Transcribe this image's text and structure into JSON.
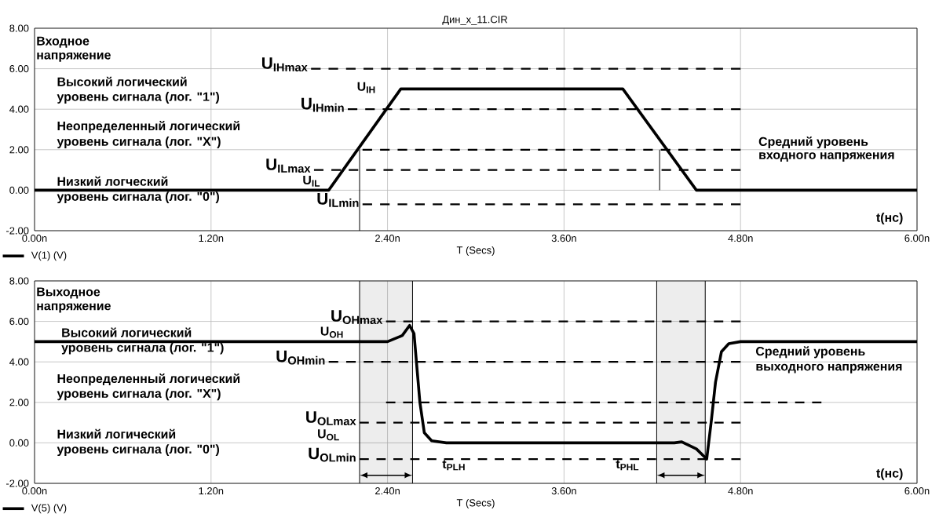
{
  "chart_data": [
    {
      "type": "line",
      "title": "Дин_х_11.CIR",
      "xlabel": "T (Secs)",
      "grid": true,
      "xlim": [
        0,
        6
      ],
      "xticks": [
        {
          "value": 0,
          "label": "0.00n"
        },
        {
          "value": 1.2,
          "label": "1.20n"
        },
        {
          "value": 2.4,
          "label": "2.40n"
        },
        {
          "value": 3.6,
          "label": "3.60n"
        },
        {
          "value": 4.8,
          "label": "4.80n"
        },
        {
          "value": 6,
          "label": "6.00n"
        }
      ],
      "ylim": [
        -2,
        8
      ],
      "yticks": [
        {
          "value": -2,
          "label": "-2.00"
        },
        {
          "value": 0,
          "label": "0.00"
        },
        {
          "value": 2,
          "label": "2.00"
        },
        {
          "value": 4,
          "label": "4.00"
        },
        {
          "value": 6,
          "label": "6.00"
        },
        {
          "value": 8,
          "label": "8.00"
        }
      ],
      "series": [
        {
          "name": "V(1) (V)",
          "color": "#000000",
          "x": [
            0,
            2.0,
            2.49,
            4.0,
            4.5,
            6
          ],
          "values": [
            0,
            0,
            5,
            5,
            0,
            0
          ]
        },
        {
          "name": "U$_{IHmax}$",
          "color": "#000000",
          "line_style": "dashed",
          "x": [
            1.88,
            4.8
          ],
          "values": [
            6,
            6
          ]
        },
        {
          "name": "U$_{IHmin}$",
          "color": "#000000",
          "line_style": "dashed",
          "x": [
            2.13,
            4.8
          ],
          "values": [
            4,
            4
          ]
        },
        {
          "color": "#000000",
          "line_style": "dashed",
          "x": [
            2.23,
            4.8
          ],
          "values": [
            2,
            2
          ]
        },
        {
          "name": "U$_{ILmax}$",
          "color": "#000000",
          "line_style": "dashed",
          "x": [
            1.9,
            4.8
          ],
          "values": [
            1,
            1
          ]
        },
        {
          "name": "U$_{ILmin}$",
          "color": "#000000",
          "line_style": "dashed",
          "x": [
            2.23,
            4.8
          ],
          "values": [
            -0.7,
            -0.7
          ]
        },
        {
          "color": "#000000",
          "x": [
            2.21,
            2.21
          ],
          "values": [
            2,
            -2
          ]
        },
        {
          "color": "#000000",
          "x": [
            4.25,
            4.25
          ],
          "values": [
            2,
            0
          ]
        }
      ],
      "annotations": [
        "Входное",
        "напряжение",
        "Высокий логический",
        "уровень сигнала (лог. \"1\")",
        "Неопределенный логический",
        "уровень сигнала (лог. \"X\")",
        {
          "text": "Низкий логческий",
          "x": 0.15,
          "y": 0.45
        },
        {
          "text": "уровень сигнала (лог. \"0\")",
          "x": 0.15,
          "y": -0.36
        },
        "U$_{IH}$",
        {
          "text": "U$_{IL}$",
          "x": 1.82,
          "y": 0.45
        },
        "Средний уровень",
        "входного напряжения",
        "t(нс)"
      ]
    },
    {
      "type": "line",
      "xlabel": "T (Secs)",
      "grid": true,
      "xlim": [
        0,
        6
      ],
      "xticks": [
        {
          "value": 0,
          "label": "0.00n"
        },
        {
          "value": 1.2,
          "label": "1.20n"
        },
        {
          "value": 2.4,
          "label": "2.40n"
        },
        {
          "value": 3.6,
          "label": "3.60n"
        },
        {
          "value": 4.8,
          "label": "4.80n"
        },
        {
          "value": 6,
          "label": "6.00n"
        }
      ],
      "ylim": [
        -2,
        8
      ],
      "yticks": [
        {
          "value": -2,
          "label": "-2.00"
        },
        {
          "value": 0,
          "label": "0.00"
        },
        {
          "value": 2,
          "label": "2.00"
        },
        {
          "value": 4,
          "label": "4.00"
        },
        {
          "value": 6,
          "label": "6.00"
        },
        {
          "value": 8,
          "label": "8.00"
        }
      ],
      "series": [
        {
          "name": "V(5) (V)",
          "color": "#000000",
          "x": [
            0,
            2.2,
            2.4,
            2.5,
            2.55,
            2.58,
            2.62,
            2.65,
            2.7,
            2.8,
            4.35,
            4.4,
            4.5,
            4.57,
            4.6,
            4.63,
            4.67,
            4.72,
            4.8,
            6
          ],
          "values": [
            5,
            5,
            5,
            5.3,
            5.8,
            5.4,
            2,
            0.5,
            0.1,
            0,
            0,
            0.05,
            -0.3,
            -0.8,
            1,
            3,
            4.5,
            4.9,
            5,
            5
          ]
        },
        {
          "name": "U$_{OHmax}$",
          "color": "#000000",
          "line_style": "dashed",
          "x": [
            2.39,
            4.8
          ],
          "values": [
            6,
            6
          ]
        },
        {
          "name": "U$_{OHmin}$",
          "color": "#000000",
          "line_style": "dashed",
          "x": [
            2.0,
            4.8
          ],
          "values": [
            4,
            4
          ]
        },
        {
          "color": "#000000",
          "line_style": "dashed",
          "x": [
            2.39,
            5.35
          ],
          "values": [
            2,
            2
          ]
        },
        {
          "name": "U$_{OLmax}$",
          "color": "#000000",
          "line_style": "dashed",
          "x": [
            2.21,
            4.8
          ],
          "values": [
            1,
            1
          ]
        },
        {
          "name": "U$_{OLmin}$",
          "color": "#000000",
          "line_style": "dashed",
          "x": [
            2.21,
            4.8
          ],
          "values": [
            -0.8,
            -0.8
          ]
        }
      ],
      "ref_lines": [
        {
          "axis": "x",
          "value": 2.21,
          "color": "#000000"
        },
        {
          "axis": "x",
          "value": 2.57,
          "color": "#000000"
        },
        {
          "axis": "x",
          "value": 4.23,
          "color": "#000000"
        },
        {
          "axis": "x",
          "value": 4.56,
          "color": "#000000"
        }
      ],
      "bands": [
        {
          "axis": "x",
          "from": 2.21,
          "to": 2.57,
          "color": "#000000"
        },
        {
          "axis": "x",
          "from": 4.23,
          "to": 4.56,
          "color": "#000000"
        }
      ],
      "annotations": [
        "Выходное",
        "напряжение",
        "Высокий логический",
        {
          "text": "уровень сигнала (лог. \"1\")",
          "x": 0.18,
          "y": 4.66
        },
        "Неопределенный логический",
        "уровень сигнала (лог. \"X\")",
        "Низкий логический",
        "уровень  сигнала (лог. \"0\")",
        "U$_{OH}$",
        "U$_{OL}$",
        {
          "text": "t$_{PLH}$",
          "x": 2.77,
          "y": -1.1
        },
        {
          "text": "t$_{PHL}$",
          "x": 3.95,
          "y": -1.1
        },
        "Средний уровень",
        "выходного напряжения",
        "t(нс)"
      ]
    }
  ]
}
